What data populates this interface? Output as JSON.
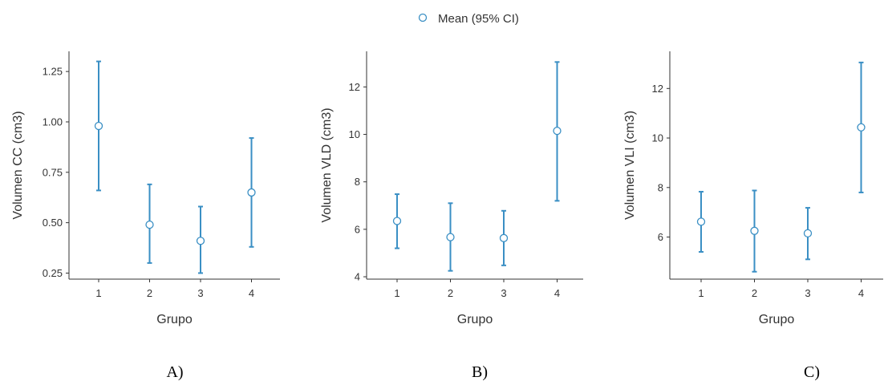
{
  "legend": {
    "label": "Mean (95% CI)",
    "color": "#3a8fc4"
  },
  "colors": {
    "errorbar": "#3a8fc4",
    "point_fill": "#ffffff",
    "point_stroke": "#3a8fc4",
    "axis": "#333333"
  },
  "chart_data": [
    {
      "type": "errorbar",
      "caption": "A)",
      "xlabel": "Grupo",
      "ylabel": "Volumen CC (cm3)",
      "categories": [
        "1",
        "2",
        "3",
        "4"
      ],
      "ylim": [
        0.22,
        1.35
      ],
      "yticks": [
        "0.25",
        "0.50",
        "0.75",
        "1.00",
        "1.25"
      ],
      "series": [
        {
          "name": "Mean (95% CI)",
          "mean": [
            0.98,
            0.49,
            0.41,
            0.65
          ],
          "lower": [
            0.66,
            0.3,
            0.25,
            0.38
          ],
          "upper": [
            1.3,
            0.69,
            0.58,
            0.92
          ]
        }
      ]
    },
    {
      "type": "errorbar",
      "caption": "B)",
      "xlabel": "Grupo",
      "ylabel": "Volumen VLD (cm3)",
      "categories": [
        "1",
        "2",
        "3",
        "4"
      ],
      "ylim": [
        3.9,
        13.5
      ],
      "yticks": [
        "4",
        "6",
        "8",
        "10",
        "12"
      ],
      "series": [
        {
          "name": "Mean (95% CI)",
          "mean": [
            6.35,
            5.67,
            5.63,
            10.15
          ],
          "lower": [
            5.2,
            4.25,
            4.48,
            7.2
          ],
          "upper": [
            7.48,
            7.1,
            6.78,
            13.05
          ]
        }
      ]
    },
    {
      "type": "errorbar",
      "caption": "C)",
      "xlabel": "Grupo",
      "ylabel": "Volumen VLI (cm3)",
      "categories": [
        "1",
        "2",
        "3",
        "4"
      ],
      "ylim": [
        4.3,
        13.5
      ],
      "yticks": [
        "6",
        "8",
        "10",
        "12"
      ],
      "series": [
        {
          "name": "Mean (95% CI)",
          "mean": [
            6.62,
            6.25,
            6.15,
            10.43
          ],
          "lower": [
            5.4,
            4.6,
            5.1,
            7.8
          ],
          "upper": [
            7.83,
            7.88,
            7.18,
            13.05
          ]
        }
      ]
    }
  ]
}
